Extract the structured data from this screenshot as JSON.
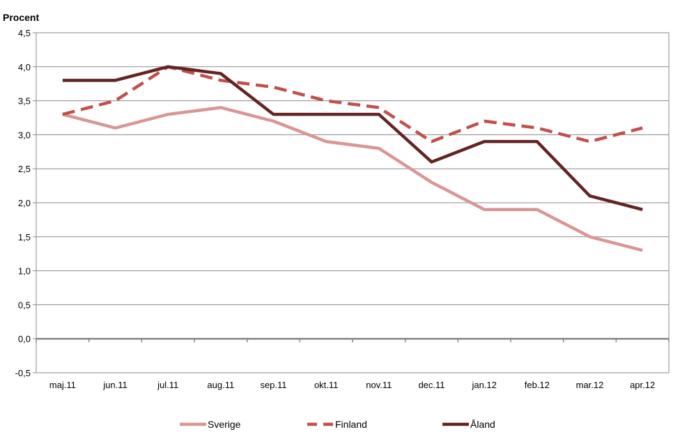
{
  "chart_data": {
    "type": "line",
    "ylabel": "Procent",
    "categories": [
      "maj.11",
      "jun.11",
      "jul.11",
      "aug.11",
      "sep.11",
      "okt.11",
      "nov.11",
      "dec.11",
      "jan.12",
      "feb.12",
      "mar.12",
      "apr.12"
    ],
    "ylim": [
      -0.5,
      4.5
    ],
    "yticks": [
      "4,5",
      "4,0",
      "3,5",
      "3,0",
      "2,5",
      "2,0",
      "1,5",
      "1,0",
      "0,5",
      "0,0",
      "-0,5"
    ],
    "ytick_values": [
      4.5,
      4.0,
      3.5,
      3.0,
      2.5,
      2.0,
      1.5,
      1.0,
      0.5,
      0.0,
      -0.5
    ],
    "grid": true,
    "legend_position": "bottom",
    "series": [
      {
        "name": "Sverige",
        "values": [
          3.3,
          3.1,
          3.3,
          3.4,
          3.2,
          2.9,
          2.8,
          2.3,
          1.9,
          1.9,
          1.5,
          1.3
        ],
        "color": "#d99694",
        "dash": false
      },
      {
        "name": "Finland",
        "values": [
          3.3,
          3.5,
          4.0,
          3.8,
          3.7,
          3.5,
          3.4,
          2.9,
          3.2,
          3.1,
          2.9,
          3.1
        ],
        "color": "#c0504d",
        "dash": true
      },
      {
        "name": "Åland",
        "values": [
          3.8,
          3.8,
          4.0,
          3.9,
          3.3,
          3.3,
          3.3,
          2.6,
          2.9,
          2.9,
          2.1,
          1.9
        ],
        "color": "#632523",
        "dash": false
      }
    ]
  }
}
